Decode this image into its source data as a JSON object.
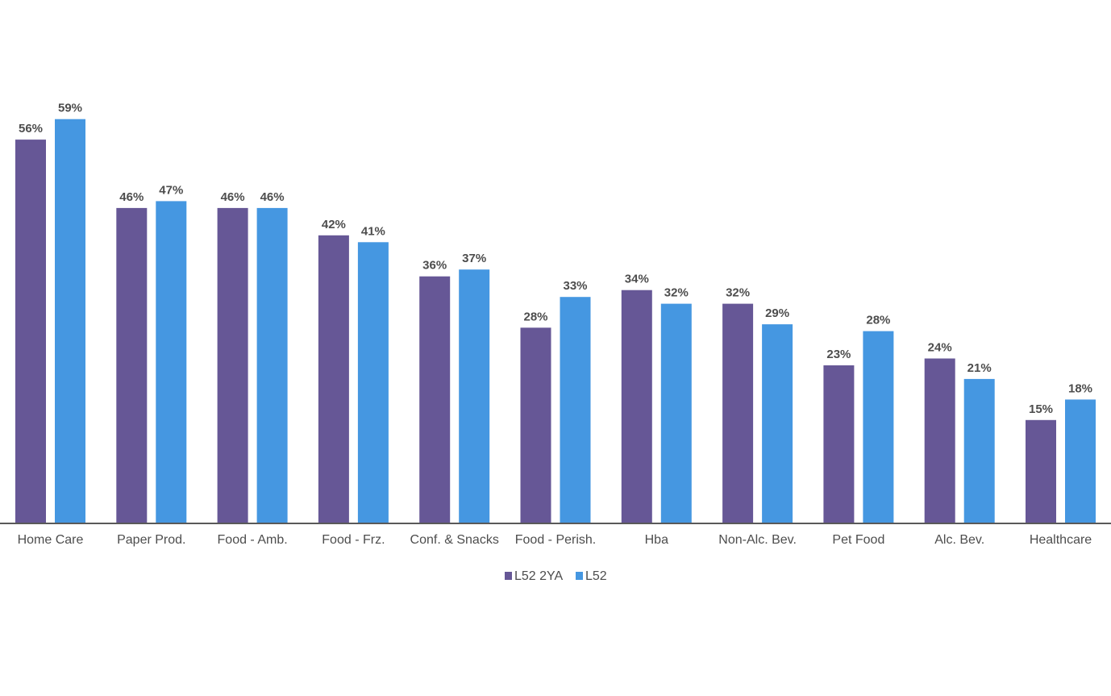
{
  "chart_data": {
    "type": "bar",
    "title": "",
    "xlabel": "",
    "ylabel": "",
    "ylim": [
      0,
      0.63
    ],
    "grid": false,
    "legend_position": "bottom",
    "value_format": "percent",
    "categories": [
      "Home Care",
      "Paper Prod.",
      "Food - Amb.",
      "Food - Frz.",
      "Conf. & Snacks",
      "Food - Perish.",
      "Hba",
      "Non-Alc. Bev.",
      "Pet Food",
      "Alc. Bev.",
      "Healthcare"
    ],
    "series": [
      {
        "name": "L52 2YA",
        "color": "#665796",
        "values": [
          0.56,
          0.46,
          0.46,
          0.42,
          0.36,
          0.285,
          0.34,
          0.32,
          0.23,
          0.24,
          0.15
        ],
        "labels": [
          "56%",
          "46%",
          "46%",
          "42%",
          "36%",
          "28%",
          "34%",
          "32%",
          "23%",
          "24%",
          "15%"
        ]
      },
      {
        "name": "L52",
        "color": "#4597e1",
        "values": [
          0.59,
          0.47,
          0.46,
          0.41,
          0.37,
          0.33,
          0.32,
          0.29,
          0.28,
          0.21,
          0.18
        ],
        "labels": [
          "59%",
          "47%",
          "46%",
          "41%",
          "37%",
          "33%",
          "32%",
          "29%",
          "28%",
          "21%",
          "18%"
        ]
      }
    ],
    "axis_color": "#595959",
    "text_color": "#4d4d4d"
  }
}
